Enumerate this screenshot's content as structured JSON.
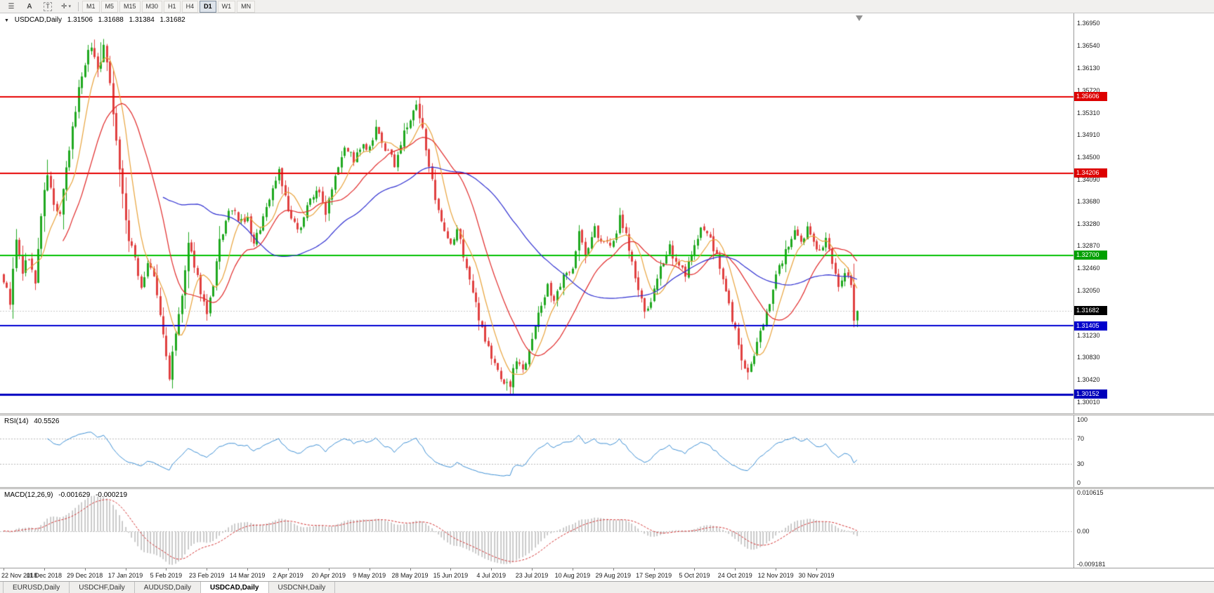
{
  "toolbar": {
    "icons": [
      {
        "name": "charts-menu-icon",
        "glyph": "☰"
      },
      {
        "name": "text-a-icon",
        "glyph": "A"
      },
      {
        "name": "text-box-icon",
        "glyph": "T"
      },
      {
        "name": "crosshair-icon",
        "glyph": "✛"
      },
      {
        "name": "dropdown-caret-icon",
        "glyph": "▾"
      }
    ],
    "timeframes": [
      "M1",
      "M5",
      "M15",
      "M30",
      "H1",
      "H4",
      "D1",
      "W1",
      "MN"
    ],
    "active_timeframe": "D1"
  },
  "main_chart": {
    "menu_arrow": "▼",
    "symbol_label": "USDCAD,Daily",
    "open": "1.31506",
    "high": "1.31688",
    "low": "1.31384",
    "close": "1.31682"
  },
  "price_axis": {
    "max": 1.3695,
    "min": 1.3001,
    "scale_labels": [
      "1.36950",
      "1.36540",
      "1.36130",
      "1.35720",
      "1.35310",
      "1.34910",
      "1.34500",
      "1.34090",
      "1.33680",
      "1.33280",
      "1.32870",
      "1.32460",
      "1.32050",
      "1.31640",
      "1.31230",
      "1.30830",
      "1.30420",
      "1.30010"
    ],
    "level_tags": [
      {
        "text": "1.35606",
        "bg": "#dd0000"
      },
      {
        "text": "1.34206",
        "bg": "#dd0000"
      },
      {
        "text": "1.32700",
        "bg": "#00a000"
      },
      {
        "text": "1.31682",
        "bg": "#000000"
      },
      {
        "text": "1.31405",
        "bg": "#0000cc"
      },
      {
        "text": "1.30152",
        "bg": "#0000bb"
      }
    ]
  },
  "rsi_panel": {
    "label": "RSI(14)",
    "value": "40.5526",
    "period": 14,
    "levels": [
      70,
      30
    ],
    "scale_labels": [
      "100",
      "70",
      "30",
      "0"
    ],
    "line_color": "#3d8fd4"
  },
  "macd_panel": {
    "label": "MACD(12,26,9)",
    "main_value": "-0.001629",
    "signal_value": "-0.000219",
    "fast": 12,
    "slow": 26,
    "signal": 9,
    "scale_labels": [
      "0.010615",
      "0.00",
      "-0.009181"
    ],
    "scale_max": 0.010615,
    "scale_min": -0.009181,
    "histogram_color": "#a9a9a9",
    "signal_color": "#d23030"
  },
  "date_axis": {
    "labels": [
      "22 Nov 2018",
      "11 Dec 2018",
      "29 Dec 2018",
      "17 Jan 2019",
      "5 Feb 2019",
      "23 Feb 2019",
      "14 Mar 2019",
      "2 Apr 2019",
      "20 Apr 2019",
      "9 May 2019",
      "28 May 2019",
      "15 Jun 2019",
      "4 Jul 2019",
      "23 Jul 2019",
      "10 Aug 2019",
      "29 Aug 2019",
      "17 Sep 2019",
      "5 Oct 2019",
      "24 Oct 2019",
      "12 Nov 2019",
      "30 Nov 2019"
    ]
  },
  "tabs": {
    "items": [
      "EURUSD,Daily",
      "USDCHF,Daily",
      "AUDUSD,Daily",
      "USDCAD,Daily",
      "USDCNH,Daily"
    ],
    "active": "USDCAD,Daily"
  },
  "chart_data": {
    "type": "candlestick",
    "title": "USDCAD,Daily",
    "symbol": "USDCAD",
    "timeframe": "Daily",
    "candle_count": 274,
    "seed": 9,
    "noise": 0.0016,
    "current_price": 1.31682,
    "last_candle": {
      "open": 1.31506,
      "high": 1.31688,
      "low": 1.31384,
      "close": 1.31682
    },
    "x_tick_labels": [
      "22 Nov 2018",
      "11 Dec 2018",
      "29 Dec 2018",
      "17 Jan 2019",
      "5 Feb 2019",
      "23 Feb 2019",
      "14 Mar 2019",
      "2 Apr 2019",
      "20 Apr 2019",
      "9 May 2019",
      "28 May 2019",
      "15 Jun 2019",
      "4 Jul 2019",
      "23 Jul 2019",
      "10 Aug 2019",
      "29 Aug 2019",
      "17 Sep 2019",
      "5 Oct 2019",
      "24 Oct 2019",
      "12 Nov 2019",
      "30 Nov 2019"
    ],
    "ylim": [
      1.3001,
      1.3695
    ],
    "levels": [
      {
        "price": 1.35606,
        "color": "#e60000",
        "width": 2
      },
      {
        "price": 1.34206,
        "color": "#e60000",
        "width": 2
      },
      {
        "price": 1.327,
        "color": "#00c000",
        "width": 2
      },
      {
        "price": 1.31405,
        "color": "#0000d2",
        "width": 2
      },
      {
        "price": 1.30152,
        "color": "#0000c0",
        "width": 3
      }
    ],
    "moving_averages": [
      {
        "period": 8,
        "color": "#e8a23a"
      },
      {
        "period": 20,
        "color": "#e02828"
      },
      {
        "period": 52,
        "color": "#2d2dd0"
      }
    ],
    "indicators": [
      {
        "name": "RSI",
        "period": 14,
        "value": 40.5526
      },
      {
        "name": "MACD",
        "fast": 12,
        "slow": 26,
        "signal": 9,
        "values": [
          -0.001629,
          -0.000219
        ]
      }
    ],
    "colors": {
      "up": "#1fa81f",
      "down": "#e04040",
      "background": "#ffffff"
    },
    "price_path": [
      [
        0,
        1.3225
      ],
      [
        2,
        1.3185
      ],
      [
        4,
        1.3295
      ],
      [
        6,
        1.324
      ],
      [
        8,
        1.3268
      ],
      [
        10,
        1.3215
      ],
      [
        12,
        1.3345
      ],
      [
        14,
        1.342
      ],
      [
        16,
        1.336
      ],
      [
        18,
        1.3345
      ],
      [
        20,
        1.3425
      ],
      [
        22,
        1.35
      ],
      [
        24,
        1.3575
      ],
      [
        26,
        1.3625
      ],
      [
        28,
        1.3655
      ],
      [
        30,
        1.361
      ],
      [
        32,
        1.365
      ],
      [
        34,
        1.359
      ],
      [
        36,
        1.348
      ],
      [
        38,
        1.338
      ],
      [
        40,
        1.3295
      ],
      [
        42,
        1.3265
      ],
      [
        44,
        1.321
      ],
      [
        46,
        1.3255
      ],
      [
        48,
        1.323
      ],
      [
        50,
        1.316
      ],
      [
        52,
        1.3085
      ],
      [
        53,
        1.3048
      ],
      [
        55,
        1.3125
      ],
      [
        57,
        1.3195
      ],
      [
        59,
        1.3285
      ],
      [
        61,
        1.3255
      ],
      [
        63,
        1.3205
      ],
      [
        65,
        1.316
      ],
      [
        67,
        1.321
      ],
      [
        69,
        1.3295
      ],
      [
        71,
        1.333
      ],
      [
        73,
        1.3358
      ],
      [
        75,
        1.333
      ],
      [
        78,
        1.3335
      ],
      [
        80,
        1.3288
      ],
      [
        83,
        1.334
      ],
      [
        86,
        1.3392
      ],
      [
        88,
        1.3428
      ],
      [
        91,
        1.3348
      ],
      [
        94,
        1.3312
      ],
      [
        97,
        1.336
      ],
      [
        100,
        1.3392
      ],
      [
        103,
        1.3352
      ],
      [
        106,
        1.342
      ],
      [
        109,
        1.3472
      ],
      [
        112,
        1.3445
      ],
      [
        115,
        1.3468
      ],
      [
        117,
        1.3462
      ],
      [
        119,
        1.3498
      ],
      [
        122,
        1.3465
      ],
      [
        125,
        1.3438
      ],
      [
        128,
        1.3492
      ],
      [
        130,
        1.3518
      ],
      [
        132,
        1.3542
      ],
      [
        134,
        1.3498
      ],
      [
        136,
        1.344
      ],
      [
        138,
        1.3365
      ],
      [
        141,
        1.3308
      ],
      [
        143,
        1.3285
      ],
      [
        145,
        1.3318
      ],
      [
        148,
        1.3248
      ],
      [
        151,
        1.3178
      ],
      [
        154,
        1.3118
      ],
      [
        156,
        1.3082
      ],
      [
        158,
        1.3058
      ],
      [
        160,
        1.3038
      ],
      [
        162,
        1.3032
      ],
      [
        164,
        1.3082
      ],
      [
        166,
        1.3058
      ],
      [
        169,
        1.3122
      ],
      [
        171,
        1.3158
      ],
      [
        174,
        1.3218
      ],
      [
        176,
        1.3182
      ],
      [
        179,
        1.3228
      ],
      [
        182,
        1.3252
      ],
      [
        184,
        1.3312
      ],
      [
        186,
        1.3268
      ],
      [
        189,
        1.3318
      ],
      [
        192,
        1.3288
      ],
      [
        195,
        1.3292
      ],
      [
        197,
        1.3342
      ],
      [
        199,
        1.3308
      ],
      [
        202,
        1.3228
      ],
      [
        205,
        1.3162
      ],
      [
        208,
        1.3202
      ],
      [
        211,
        1.3262
      ],
      [
        213,
        1.3288
      ],
      [
        215,
        1.3252
      ],
      [
        218,
        1.3238
      ],
      [
        221,
        1.3282
      ],
      [
        223,
        1.3328
      ],
      [
        226,
        1.3298
      ],
      [
        229,
        1.3248
      ],
      [
        232,
        1.3178
      ],
      [
        234,
        1.3132
      ],
      [
        236,
        1.3078
      ],
      [
        238,
        1.3052
      ],
      [
        240,
        1.3082
      ],
      [
        242,
        1.3128
      ],
      [
        245,
        1.3188
      ],
      [
        247,
        1.3232
      ],
      [
        250,
        1.3278
      ],
      [
        253,
        1.3308
      ],
      [
        255,
        1.3288
      ],
      [
        257,
        1.3318
      ],
      [
        259,
        1.3298
      ],
      [
        261,
        1.3278
      ],
      [
        263,
        1.3298
      ],
      [
        265,
        1.3252
      ],
      [
        267,
        1.3212
      ],
      [
        269,
        1.3242
      ],
      [
        271,
        1.3218
      ],
      [
        272,
        1.3152
      ],
      [
        273,
        1.31682
      ]
    ],
    "key_points": [
      [
        14,
        "high",
        1.3445
      ],
      [
        29,
        "high",
        1.3665
      ],
      [
        31,
        "high",
        1.366
      ],
      [
        53,
        "low",
        1.304
      ],
      [
        133,
        "high",
        1.356
      ],
      [
        134,
        "high",
        1.3545
      ],
      [
        161,
        "low",
        1.3022
      ],
      [
        162,
        "low",
        1.3016
      ],
      [
        238,
        "low",
        1.3042
      ],
      [
        272,
        "low",
        1.3138
      ]
    ]
  }
}
